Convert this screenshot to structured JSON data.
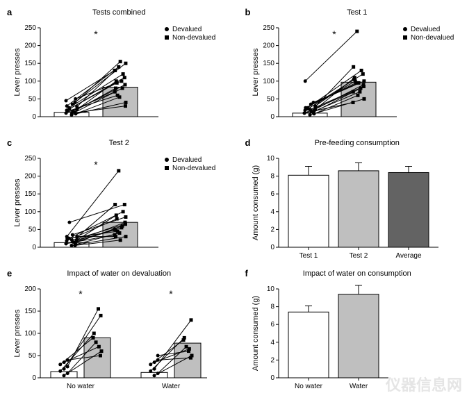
{
  "colors": {
    "bg": "#ffffff",
    "axis": "#000000",
    "bar_devalued_fill": "#ffffff",
    "bar_nondev_fill": "#bfbfbf",
    "bar_dark_fill": "#636363",
    "bar_stroke": "#000000",
    "line": "#000000",
    "marker": "#000000",
    "tick": "#000000"
  },
  "fonts": {
    "panel_letter_size": 13,
    "title_size": 11,
    "axis_label_size": 11,
    "tick_size": 10
  },
  "legend": {
    "devalued_label": "Devalued",
    "nondev_label": "Non-devalued",
    "marker_dev": "circle",
    "marker_nondev": "square"
  },
  "panels": {
    "a": {
      "letter": "a",
      "title": "Tests combined",
      "type": "barline",
      "ylabel": "Lever presses",
      "ylim": [
        0,
        250
      ],
      "ytick_step": 50,
      "asterisk": true,
      "bars": {
        "devalued": 12,
        "nondev": 83
      },
      "lines": [
        [
          5,
          40
        ],
        [
          8,
          55
        ],
        [
          10,
          70
        ],
        [
          12,
          80
        ],
        [
          15,
          90
        ],
        [
          18,
          95
        ],
        [
          20,
          100
        ],
        [
          22,
          110
        ],
        [
          25,
          120
        ],
        [
          28,
          130
        ],
        [
          30,
          140
        ],
        [
          35,
          150
        ],
        [
          40,
          155
        ],
        [
          45,
          130
        ],
        [
          50,
          100
        ],
        [
          10,
          30
        ],
        [
          15,
          60
        ],
        [
          20,
          80
        ]
      ]
    },
    "b": {
      "letter": "b",
      "title": "Test 1",
      "type": "barline",
      "ylabel": "Lever presses",
      "ylim": [
        0,
        250
      ],
      "ytick_step": 50,
      "asterisk": true,
      "bars": {
        "devalued": 10,
        "nondev": 97
      },
      "lines": [
        [
          5,
          50
        ],
        [
          8,
          60
        ],
        [
          10,
          70
        ],
        [
          12,
          80
        ],
        [
          15,
          90
        ],
        [
          18,
          100
        ],
        [
          20,
          110
        ],
        [
          22,
          120
        ],
        [
          25,
          130
        ],
        [
          28,
          140
        ],
        [
          100,
          240
        ],
        [
          35,
          100
        ],
        [
          40,
          95
        ],
        [
          10,
          40
        ],
        [
          15,
          70
        ],
        [
          20,
          85
        ],
        [
          25,
          95
        ],
        [
          30,
          105
        ]
      ]
    },
    "c": {
      "letter": "c",
      "title": "Test 2",
      "type": "barline",
      "ylabel": "Lever presses",
      "ylim": [
        0,
        250
      ],
      "ytick_step": 50,
      "asterisk": true,
      "bars": {
        "devalued": 13,
        "nondev": 70
      },
      "lines": [
        [
          5,
          30
        ],
        [
          8,
          40
        ],
        [
          10,
          50
        ],
        [
          12,
          60
        ],
        [
          15,
          70
        ],
        [
          18,
          80
        ],
        [
          20,
          90
        ],
        [
          70,
          120
        ],
        [
          25,
          100
        ],
        [
          28,
          120
        ],
        [
          30,
          215
        ],
        [
          35,
          85
        ],
        [
          5,
          20
        ],
        [
          10,
          35
        ],
        [
          15,
          55
        ],
        [
          20,
          65
        ],
        [
          25,
          45
        ],
        [
          30,
          30
        ]
      ]
    },
    "d": {
      "letter": "d",
      "title": "Pre-feeding consumption",
      "type": "bar_err",
      "ylabel": "Amount consumed (g)",
      "ylim": [
        0,
        10
      ],
      "ytick_step": 2,
      "bars": [
        {
          "label": "Test 1",
          "value": 8.1,
          "err": 1.0,
          "fill_key": "bar_devalued_fill"
        },
        {
          "label": "Test 2",
          "value": 8.6,
          "err": 0.9,
          "fill_key": "bar_nondev_fill"
        },
        {
          "label": "Average",
          "value": 8.4,
          "err": 0.7,
          "fill_key": "bar_dark_fill"
        }
      ]
    },
    "e": {
      "letter": "e",
      "title": "Impact of water on devaluation",
      "type": "barline_grouped",
      "ylabel": "Lever presses",
      "ylim": [
        0,
        200
      ],
      "ytick_step": 50,
      "groups": [
        {
          "label": "No water",
          "asterisk": true,
          "bars": {
            "devalued": 14,
            "nondev": 90
          },
          "lines": [
            [
              5,
              60
            ],
            [
              10,
              80
            ],
            [
              15,
              100
            ],
            [
              20,
              140
            ],
            [
              25,
              155
            ],
            [
              30,
              90
            ],
            [
              35,
              70
            ],
            [
              40,
              50
            ]
          ]
        },
        {
          "label": "Water",
          "asterisk": true,
          "bars": {
            "devalued": 12,
            "nondev": 78
          },
          "lines": [
            [
              5,
              50
            ],
            [
              10,
              70
            ],
            [
              15,
              90
            ],
            [
              20,
              130
            ],
            [
              50,
              60
            ],
            [
              30,
              85
            ],
            [
              35,
              65
            ],
            [
              40,
              45
            ]
          ]
        }
      ]
    },
    "f": {
      "letter": "f",
      "title": "Impact of water on consumption",
      "type": "bar_err",
      "ylabel": "Amount consumed (g)",
      "ylim": [
        0,
        10
      ],
      "ytick_step": 2,
      "bars": [
        {
          "label": "No water",
          "value": 7.4,
          "err": 0.7,
          "fill_key": "bar_devalued_fill"
        },
        {
          "label": "Water",
          "value": 9.4,
          "err": 1.0,
          "fill_key": "bar_nondev_fill"
        }
      ]
    }
  },
  "watermark1": "仪器信息网",
  "watermark2": ""
}
